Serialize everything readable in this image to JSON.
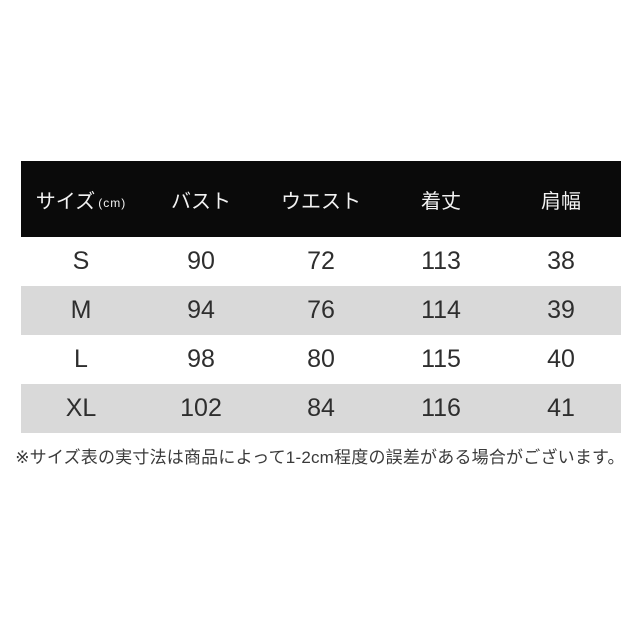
{
  "chart_data": {
    "type": "table",
    "columns": [
      "サイズ(cm)",
      "バスト",
      "ウエスト",
      "着丈",
      "肩幅"
    ],
    "rows": [
      [
        "S",
        90,
        72,
        113,
        38
      ],
      [
        "M",
        94,
        76,
        114,
        39
      ],
      [
        "L",
        98,
        80,
        115,
        40
      ],
      [
        "XL",
        102,
        84,
        116,
        41
      ]
    ],
    "footnote": "※サイズ表の実寸法は商品によって1-2cm程度の誤差がある場合がございます。",
    "layout": "header row black with white text, body rows zebra-striped white/gray, all cells center-aligned"
  },
  "table": {
    "header": {
      "size_label": "サイズ",
      "size_unit": "(cm)",
      "bust": "バスト",
      "waist": "ウエスト",
      "length": "着丈",
      "shoulder": "肩幅"
    },
    "rows": [
      {
        "size": "S",
        "bust": "90",
        "waist": "72",
        "length": "113",
        "shoulder": "38"
      },
      {
        "size": "M",
        "bust": "94",
        "waist": "76",
        "length": "114",
        "shoulder": "39"
      },
      {
        "size": "L",
        "bust": "98",
        "waist": "80",
        "length": "115",
        "shoulder": "40"
      },
      {
        "size": "XL",
        "bust": "102",
        "waist": "84",
        "length": "116",
        "shoulder": "41"
      }
    ]
  },
  "footnote": {
    "text": "※サイズ表の実寸法は商品によって1-2cm程度の誤差がある場合がございます。"
  },
  "colors": {
    "header_bg": "#0a0a0a",
    "header_text": "#f2f2f2",
    "row_bg": "#ffffff",
    "row_alt_bg": "#d9d9d9",
    "data_text": "#2e2e2e",
    "footnote_text": "#3a3a3a",
    "page_bg": "#ffffff"
  }
}
